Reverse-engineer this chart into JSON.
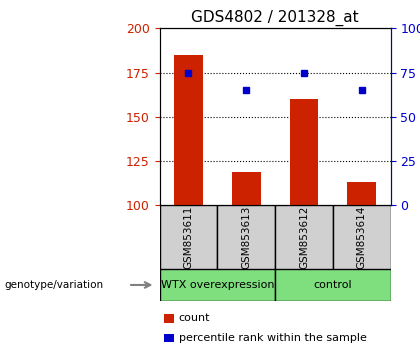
{
  "title": "GDS4802 / 201328_at",
  "samples": [
    "GSM853611",
    "GSM853613",
    "GSM853612",
    "GSM853614"
  ],
  "counts": [
    185,
    119,
    160,
    113
  ],
  "percentiles": [
    75,
    65,
    75,
    65
  ],
  "ylim_left": [
    100,
    200
  ],
  "ylim_right": [
    0,
    100
  ],
  "yticks_left": [
    100,
    125,
    150,
    175,
    200
  ],
  "yticks_right": [
    0,
    25,
    50,
    75,
    100
  ],
  "group_defs": [
    {
      "indices": [
        0,
        1
      ],
      "label": "WTX overexpression"
    },
    {
      "indices": [
        2,
        3
      ],
      "label": "control"
    }
  ],
  "bar_color": "#CC2200",
  "dot_color": "#0000CC",
  "bar_width": 0.5,
  "left_axis_color": "#CC2200",
  "right_axis_color": "#0000CC",
  "title_fontsize": 11,
  "tick_fontsize": 9,
  "sample_box_color": "#D0D0D0",
  "group_box_color": "#7FDF7F",
  "group_label": "genotype/variation",
  "legend_items": [
    {
      "color": "#CC2200",
      "label": "count"
    },
    {
      "color": "#0000CC",
      "label": "percentile rank within the sample"
    }
  ]
}
